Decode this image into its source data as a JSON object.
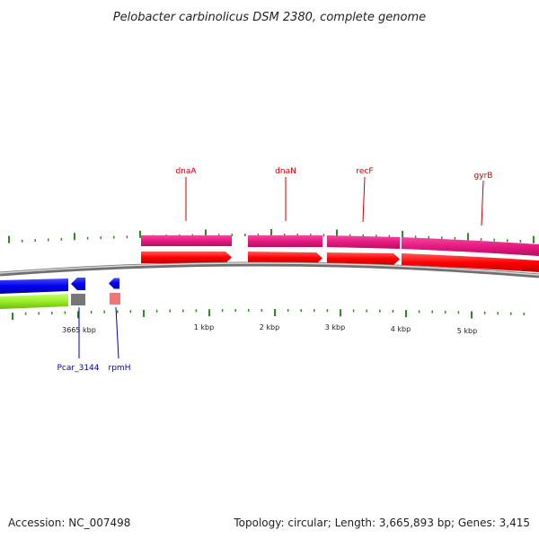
{
  "title": "Pelobacter carbinolicus DSM 2380, complete genome",
  "footer": {
    "accession": "Accession: NC_007498",
    "summary": "Topology: circular; Length: 3,665,893 bp; Genes: 3,415"
  },
  "colors": {
    "background": "#ffffff",
    "backbone": "#7a7a7a",
    "backbone_highlight": "#d8d8d8",
    "tick": "#2e8b22",
    "forward_feature_magenta": "#e6197f",
    "forward_feature_red": "#ff0000",
    "reverse_feature_blue": "#0000ee",
    "reverse_feature_lime": "#99ee22",
    "reverse_feature_gray": "#777777",
    "reverse_feature_pink": "#ee7777",
    "gene_label_top": "#cc0000",
    "gene_label_bottom": "#0000aa"
  },
  "scale_labels": [
    {
      "text": "3665 kbp"
    },
    {
      "text": "1 kbp"
    },
    {
      "text": "2 kbp"
    },
    {
      "text": "3 kbp"
    },
    {
      "text": "4 kbp"
    },
    {
      "text": "5 kbp"
    }
  ],
  "genes_top": [
    {
      "name": "dnaA"
    },
    {
      "name": "dnaN"
    },
    {
      "name": "recF"
    },
    {
      "name": "gyrB"
    }
  ],
  "genes_bottom": [
    {
      "name": "Pcar_3144"
    },
    {
      "name": "rpmH"
    }
  ]
}
